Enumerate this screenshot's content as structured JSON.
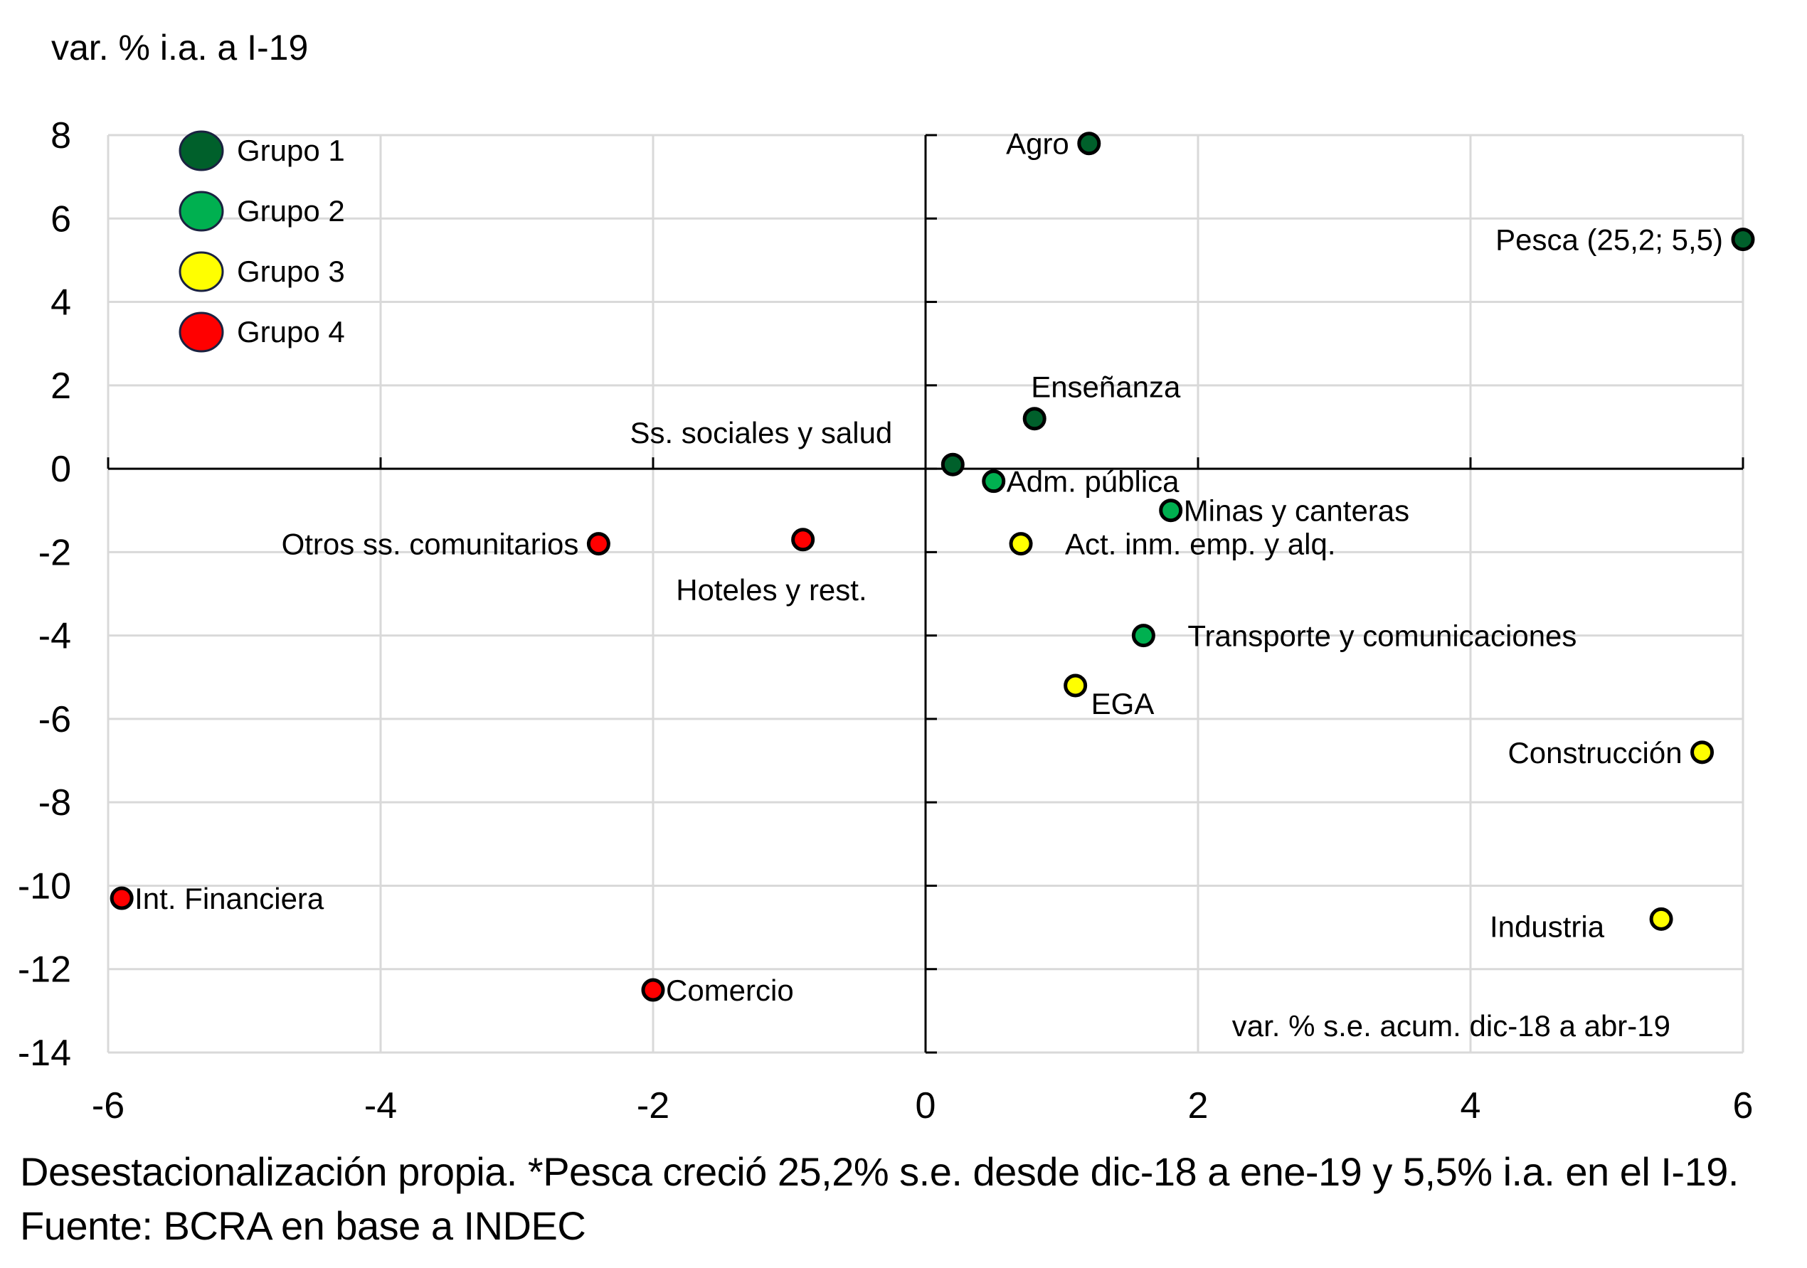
{
  "chart_data": {
    "type": "scatter",
    "title": "",
    "ylabel": "var. % i.a. a I-19",
    "xlabel": "var. % s.e. acum. dic-18 a abr-19",
    "xlim": [
      -6,
      6
    ],
    "ylim": [
      -14,
      8
    ],
    "xticks": [
      -6,
      -4,
      -2,
      0,
      2,
      4,
      6
    ],
    "yticks": [
      8,
      6,
      4,
      2,
      0,
      -2,
      -4,
      -6,
      -8,
      -10,
      -12,
      -14
    ],
    "grid": true,
    "legend_position": "top-left",
    "groups": [
      {
        "name": "Grupo 1",
        "color": "#00602B"
      },
      {
        "name": "Grupo 2",
        "color": "#00B050"
      },
      {
        "name": "Grupo 3",
        "color": "#FFFF00"
      },
      {
        "name": "Grupo 4",
        "color": "#FF0000"
      }
    ],
    "points": [
      {
        "label": "Agro",
        "group": 0,
        "x": 1.2,
        "y": 7.8,
        "label_side": "left"
      },
      {
        "label": "Pesca (25,2; 5,5)",
        "group": 0,
        "x": 6.0,
        "y": 5.5,
        "label_side": "left"
      },
      {
        "label": "Enseñanza",
        "group": 0,
        "x": 0.8,
        "y": 1.2,
        "label_side": "above-right"
      },
      {
        "label": "Ss. sociales y salud",
        "group": 0,
        "x": 0.2,
        "y": 0.1,
        "label_side": "above-left"
      },
      {
        "label": "Adm. pública",
        "group": 1,
        "x": 0.5,
        "y": -0.3,
        "label_side": "right"
      },
      {
        "label": "Minas y canteras",
        "group": 1,
        "x": 1.8,
        "y": -1.0,
        "label_side": "right"
      },
      {
        "label": "Act. inm. emp. y alq.",
        "group": 2,
        "x": 0.7,
        "y": -1.8,
        "label_side": "right-far"
      },
      {
        "label": "Transporte y comunicaciones",
        "group": 1,
        "x": 1.6,
        "y": -4.0,
        "label_side": "right-far"
      },
      {
        "label": "EGA",
        "group": 2,
        "x": 1.1,
        "y": -5.2,
        "label_side": "below-right"
      },
      {
        "label": "Construcción",
        "group": 2,
        "x": 5.7,
        "y": -6.8,
        "label_side": "left"
      },
      {
        "label": "Industria",
        "group": 2,
        "x": 5.4,
        "y": -10.8,
        "label_side": "left-below"
      },
      {
        "label": "Otros ss. comunitarios",
        "group": 3,
        "x": -2.4,
        "y": -1.8,
        "label_side": "left"
      },
      {
        "label": "Hoteles y rest.",
        "group": 3,
        "x": -0.9,
        "y": -1.7,
        "label_side": "below-left"
      },
      {
        "label": "Int. Financiera",
        "group": 3,
        "x": -5.9,
        "y": -10.3,
        "label_side": "right"
      },
      {
        "label": "Comercio",
        "group": 3,
        "x": -2.0,
        "y": -12.5,
        "label_side": "right"
      }
    ]
  },
  "footnote": "Desestacionalización propia.  *Pesca creció 25,2% s.e. desde dic-18 a ene-19 y 5,5% i.a. en el I-19. Fuente: BCRA en base a INDEC"
}
